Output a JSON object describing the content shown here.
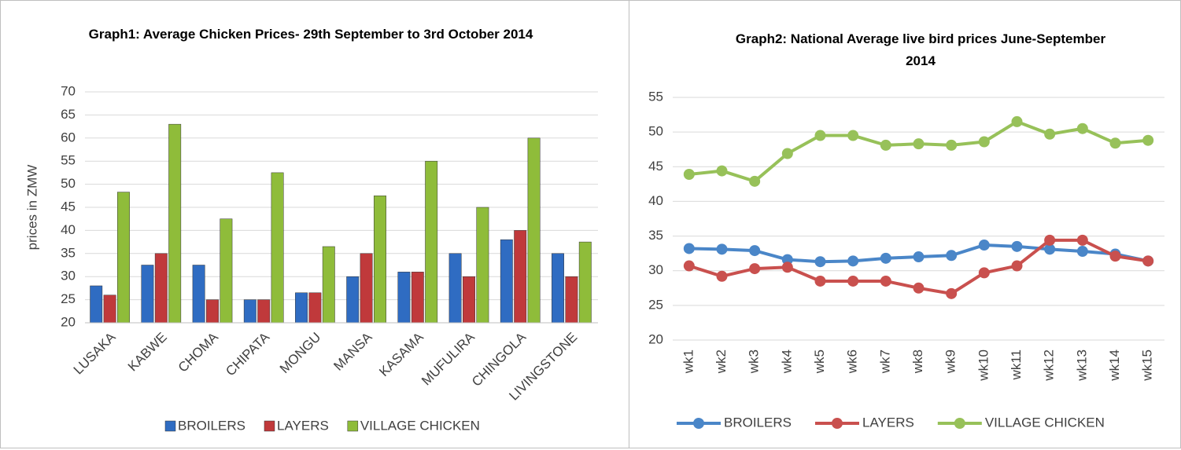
{
  "chart_data": [
    {
      "type": "bar",
      "title": "Graph1: Average Chicken Prices- 29th September to 3rd October 2014",
      "y_label": "prices in ZMW",
      "categories": [
        "LUSAKA",
        "KABWE",
        "CHOMA",
        "CHIPATA",
        "MONGU",
        "MANSA",
        "KASAMA",
        "MUFULIRA",
        "CHINGOLA",
        "LIVINGSTONE"
      ],
      "series": [
        {
          "name": "BROILERS",
          "color": "#2f6cc2",
          "values": [
            28,
            32.5,
            32.5,
            25,
            26.5,
            30,
            31,
            35,
            38,
            35
          ]
        },
        {
          "name": "LAYERS",
          "color": "#c0393b",
          "values": [
            26,
            35,
            25,
            25,
            26.5,
            35,
            31,
            30,
            40,
            30
          ]
        },
        {
          "name": "VILLAGE CHICKEN",
          "color": "#8fbc3a",
          "values": [
            48.3,
            63,
            42.5,
            52.5,
            36.5,
            47.5,
            55,
            45,
            60,
            37.5
          ]
        }
      ],
      "ylim": [
        20,
        70
      ],
      "yticks": [
        20,
        25,
        30,
        35,
        40,
        45,
        50,
        55,
        60,
        65,
        70
      ],
      "grid": true,
      "legend": "bottom"
    },
    {
      "type": "line",
      "title": "Graph2: National Average live bird prices June-September 2014",
      "categories": [
        "wk1",
        "wk2",
        "wk3",
        "wk4",
        "wk5",
        "wk6",
        "wk7",
        "wk8",
        "wk9",
        "wk10",
        "wk11",
        "wk12",
        "wk13",
        "wk14",
        "wk15"
      ],
      "series": [
        {
          "name": "BROILERS",
          "color": "#4a86c8",
          "values": [
            33.2,
            33.1,
            32.9,
            31.6,
            31.3,
            31.4,
            31.8,
            32.0,
            32.2,
            33.7,
            33.5,
            33.1,
            32.8,
            32.4,
            31.4
          ]
        },
        {
          "name": "LAYERS",
          "color": "#c9504e",
          "values": [
            30.7,
            29.2,
            30.3,
            30.5,
            28.5,
            28.5,
            28.5,
            27.5,
            26.7,
            29.7,
            30.7,
            34.4,
            34.4,
            32.1,
            31.4
          ]
        },
        {
          "name": "VILLAGE CHICKEN",
          "color": "#97c159",
          "values": [
            43.9,
            44.4,
            42.9,
            46.9,
            49.5,
            49.5,
            48.1,
            48.3,
            48.1,
            48.6,
            51.5,
            49.7,
            50.5,
            48.4,
            48.8
          ]
        }
      ],
      "ylim": [
        20,
        55
      ],
      "yticks": [
        20,
        25,
        30,
        35,
        40,
        45,
        50,
        55
      ],
      "grid": true,
      "legend": "bottom"
    }
  ]
}
